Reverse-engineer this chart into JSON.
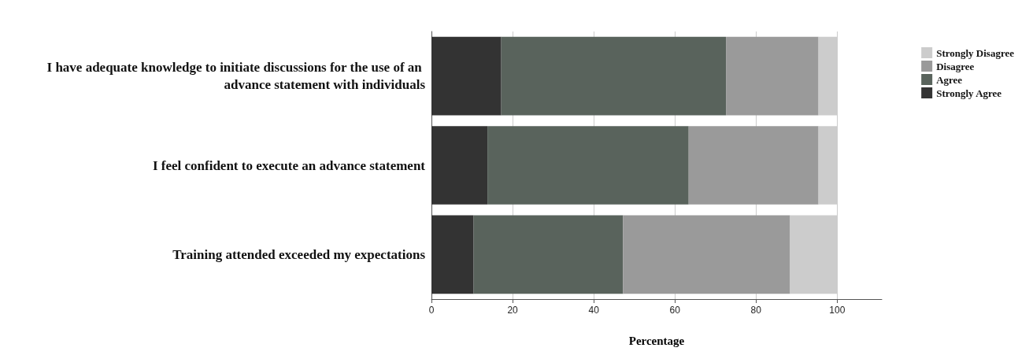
{
  "chart_data": {
    "type": "bar",
    "orientation": "horizontal",
    "stacked": true,
    "xlabel": "Percentage",
    "categories": [
      "I have adequate knowledge to initiate discussions for the use of an advance statement with individuals",
      "I feel confident to execute an advance statement",
      "Training attended exceeded my expectations"
    ],
    "series": [
      {
        "name": "Strongly Agree",
        "color": "#333333",
        "values": [
          17.2,
          13.8,
          10.4
        ]
      },
      {
        "name": "Agree",
        "color": "#59635c",
        "values": [
          55.4,
          49.6,
          36.8
        ]
      },
      {
        "name": "Disagree",
        "color": "#9a9a9a",
        "values": [
          22.8,
          32.0,
          41.2
        ]
      },
      {
        "name": "Strongly Disagree",
        "color": "#cccccc",
        "values": [
          4.6,
          4.6,
          11.6
        ]
      }
    ],
    "xlim": [
      0,
      111
    ],
    "xticks": [
      0,
      20,
      40,
      60,
      80,
      100
    ],
    "grid": "x",
    "legend": "right"
  }
}
